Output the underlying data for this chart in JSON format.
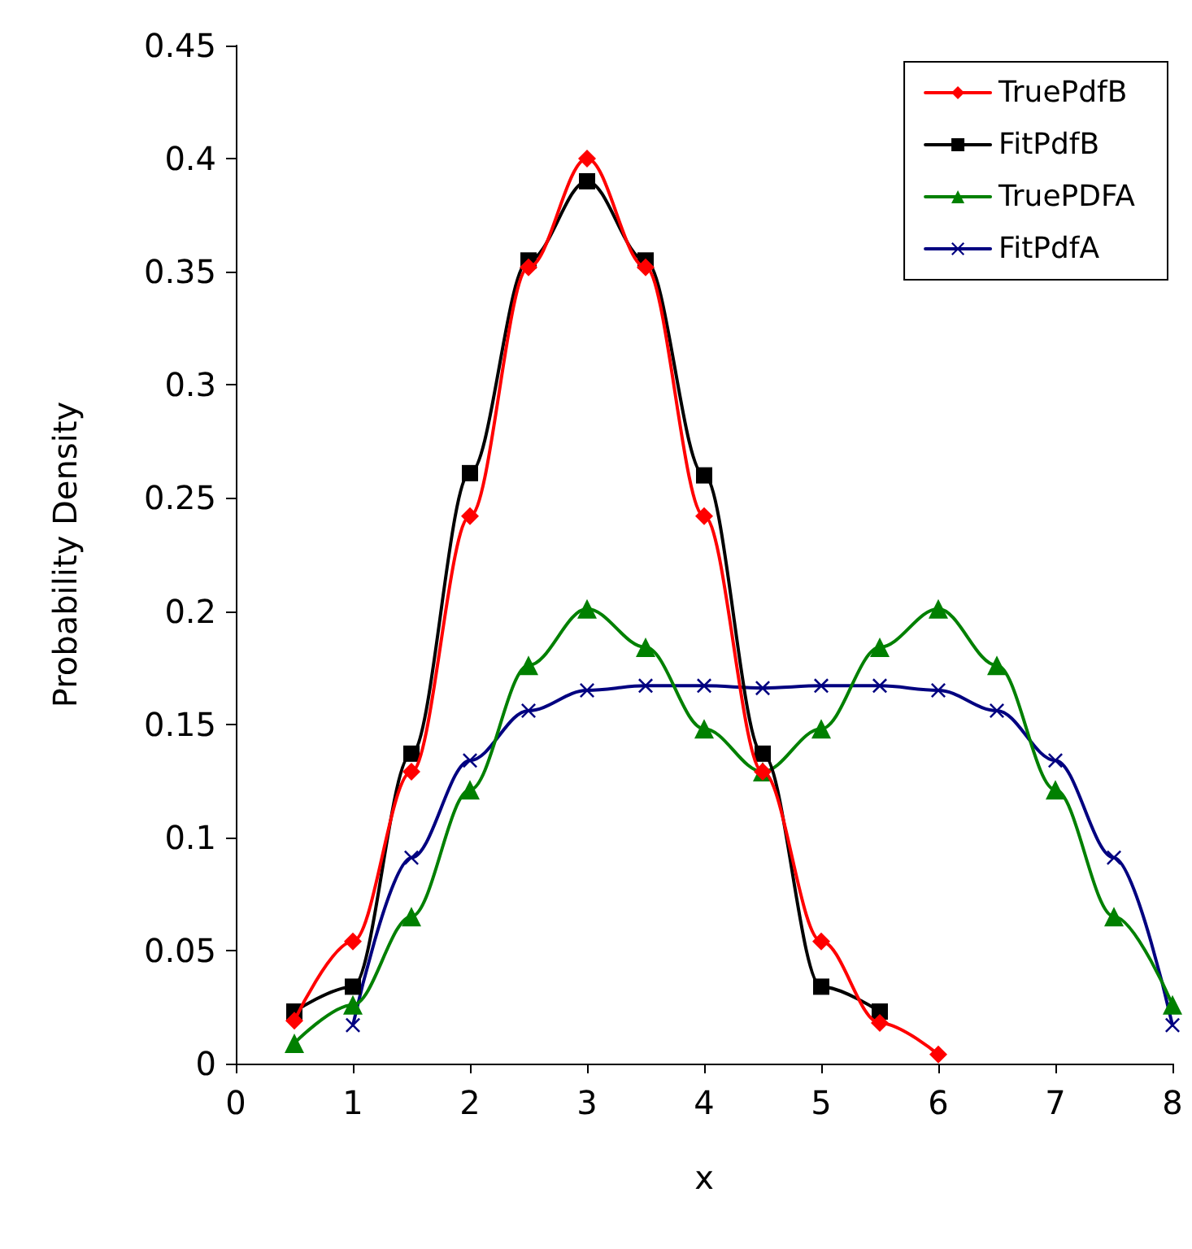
{
  "chart_data": {
    "type": "line",
    "xlabel": "x",
    "ylabel": "Probability Density",
    "xlim": [
      0,
      8
    ],
    "xticks": [
      0,
      1,
      2,
      3,
      4,
      5,
      6,
      7,
      8
    ],
    "ylim": [
      0,
      0.45
    ],
    "yticks": [
      0,
      0.05,
      0.1,
      0.15,
      0.2,
      0.25,
      0.3,
      0.35,
      0.4,
      0.45
    ],
    "grid": false,
    "legend": "top right",
    "line_style": "solid",
    "series": [
      {
        "name": "TruePdfB",
        "color": "#ff0000",
        "marker": "diamond",
        "x": [
          0.5,
          1,
          1.5,
          2,
          2.5,
          3,
          3.5,
          4,
          4.5,
          5,
          5.5,
          6
        ],
        "values": [
          0.019,
          0.054,
          0.129,
          0.242,
          0.352,
          0.4,
          0.352,
          0.242,
          0.129,
          0.054,
          0.018,
          0.004
        ]
      },
      {
        "name": "FitPdfB",
        "color": "#000000",
        "marker": "square",
        "x": [
          0.5,
          1,
          1.5,
          2,
          2.5,
          3,
          3.5,
          4,
          4.5,
          5,
          5.5
        ],
        "values": [
          0.023,
          0.034,
          0.137,
          0.261,
          0.355,
          0.39,
          0.355,
          0.26,
          0.137,
          0.034,
          0.023
        ]
      },
      {
        "name": "TruePDFA",
        "color": "#008000",
        "marker": "triangle",
        "x": [
          0.5,
          1,
          1.5,
          2,
          2.5,
          3,
          3.5,
          4,
          4.5,
          5,
          5.5,
          6,
          6.5,
          7,
          7.5,
          8
        ],
        "values": [
          0.009,
          0.026,
          0.065,
          0.121,
          0.176,
          0.201,
          0.184,
          0.148,
          0.129,
          0.148,
          0.184,
          0.201,
          0.176,
          0.121,
          0.065,
          0.026
        ]
      },
      {
        "name": "FitPdfA",
        "color": "#000080",
        "marker": "cross",
        "x": [
          1,
          1.5,
          2,
          2.5,
          3,
          3.5,
          4,
          4.5,
          5,
          5.5,
          6,
          6.5,
          7,
          7.5,
          8
        ],
        "values": [
          0.017,
          0.091,
          0.134,
          0.156,
          0.165,
          0.167,
          0.167,
          0.166,
          0.167,
          0.167,
          0.165,
          0.156,
          0.134,
          0.091,
          0.017
        ]
      }
    ]
  }
}
